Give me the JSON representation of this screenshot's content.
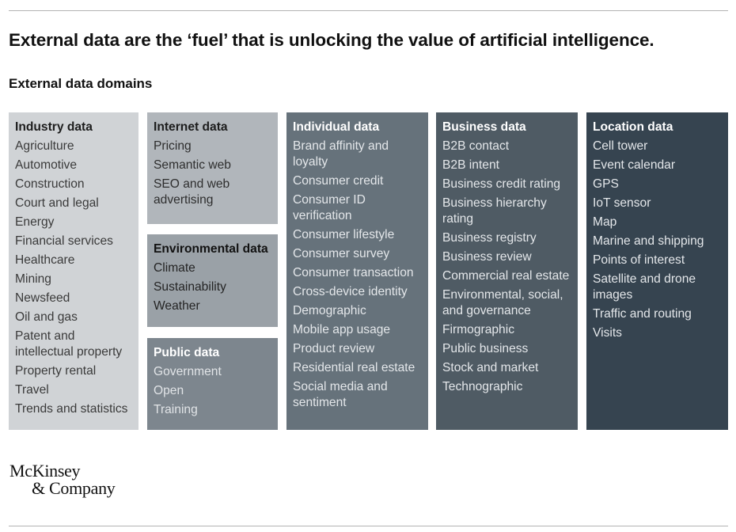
{
  "title": "External data are the ‘fuel’ that is unlocking the value of artificial intelligence.",
  "subtitle": "External data domains",
  "categories": {
    "industry": {
      "heading": "Industry data",
      "items": [
        "Agriculture",
        "Automotive",
        "Construction",
        "Court and legal",
        "Energy",
        "Financial services",
        "Healthcare",
        "Mining",
        "Newsfeed",
        "Oil and gas",
        "Patent and intellectual property",
        "Property rental",
        "Travel",
        "Trends and statistics"
      ]
    },
    "internet": {
      "heading": "Internet data",
      "items": [
        "Pricing",
        "Semantic web",
        "SEO and web advertising"
      ]
    },
    "environmental": {
      "heading": "Environmental data",
      "items": [
        "Climate",
        "Sustainability",
        "Weather"
      ]
    },
    "public": {
      "heading": "Public data",
      "items": [
        "Government",
        "Open",
        "Training"
      ]
    },
    "individual": {
      "heading": "Individual data",
      "items": [
        "Brand affinity and loyalty",
        "Consumer credit",
        "Consumer ID verification",
        "Consumer lifestyle",
        "Consumer survey",
        "Consumer transaction",
        "Cross-device identity",
        "Demographic",
        "Mobile app usage",
        "Product review",
        "Residential real estate",
        "Social media and sentiment"
      ]
    },
    "business": {
      "heading": "Business data",
      "items": [
        "B2B contact",
        "B2B intent",
        "Business credit rating",
        "Business hierarchy rating",
        "Business registry",
        "Business review",
        "Commercial real estate",
        "Environmental, social, and governance",
        "Firmographic",
        "Public business",
        "Stock and market",
        "Technographic"
      ]
    },
    "location": {
      "heading": "Location data",
      "items": [
        "Cell tower",
        "Event calendar",
        "GPS",
        "IoT sensor",
        "Map",
        "Marine and shipping",
        "Points of interest",
        "Satellite and drone images",
        "Traffic and routing",
        "Visits"
      ]
    }
  },
  "logo": {
    "line1": "McKinsey",
    "line2": "& Company"
  },
  "colors": {
    "industry": "#d0d3d6",
    "internet": "#b1b6bb",
    "environmental": "#9aa1a7",
    "public": "#7d868e",
    "individual": "#66727b",
    "business": "#4f5b64",
    "location": "#364450"
  }
}
